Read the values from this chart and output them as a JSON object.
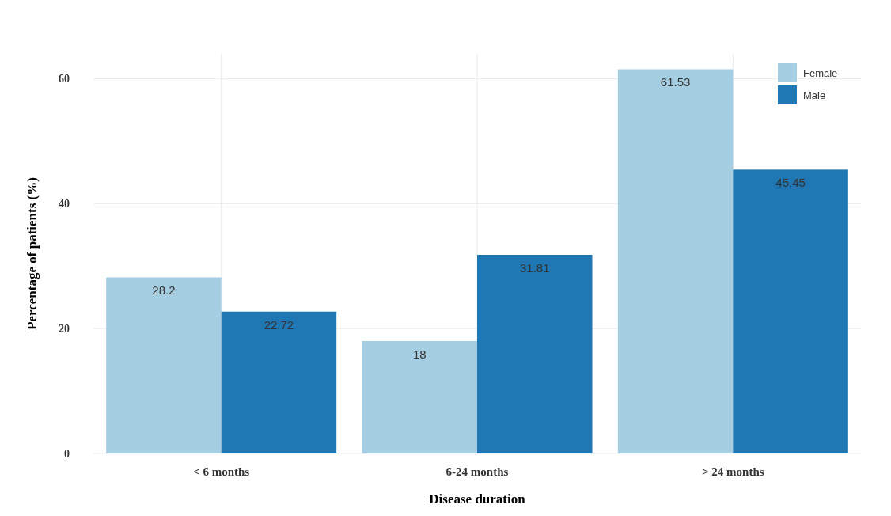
{
  "chart_data": {
    "type": "bar",
    "xlabel": "Disease duration",
    "ylabel": "Percentage of patients (%)",
    "categories": [
      "< 6 months",
      "6-24 months",
      "> 24 months"
    ],
    "series": [
      {
        "name": "Female",
        "color": "#a6cee3",
        "values": [
          28.2,
          18,
          61.53
        ]
      },
      {
        "name": "Male",
        "color": "#1f78b4",
        "values": [
          22.72,
          31.81,
          45.45
        ]
      }
    ],
    "ylim": [
      0,
      64
    ],
    "yticks": [
      0,
      20,
      40,
      60
    ],
    "grid": true,
    "legend": "top right",
    "data_labels": true
  }
}
